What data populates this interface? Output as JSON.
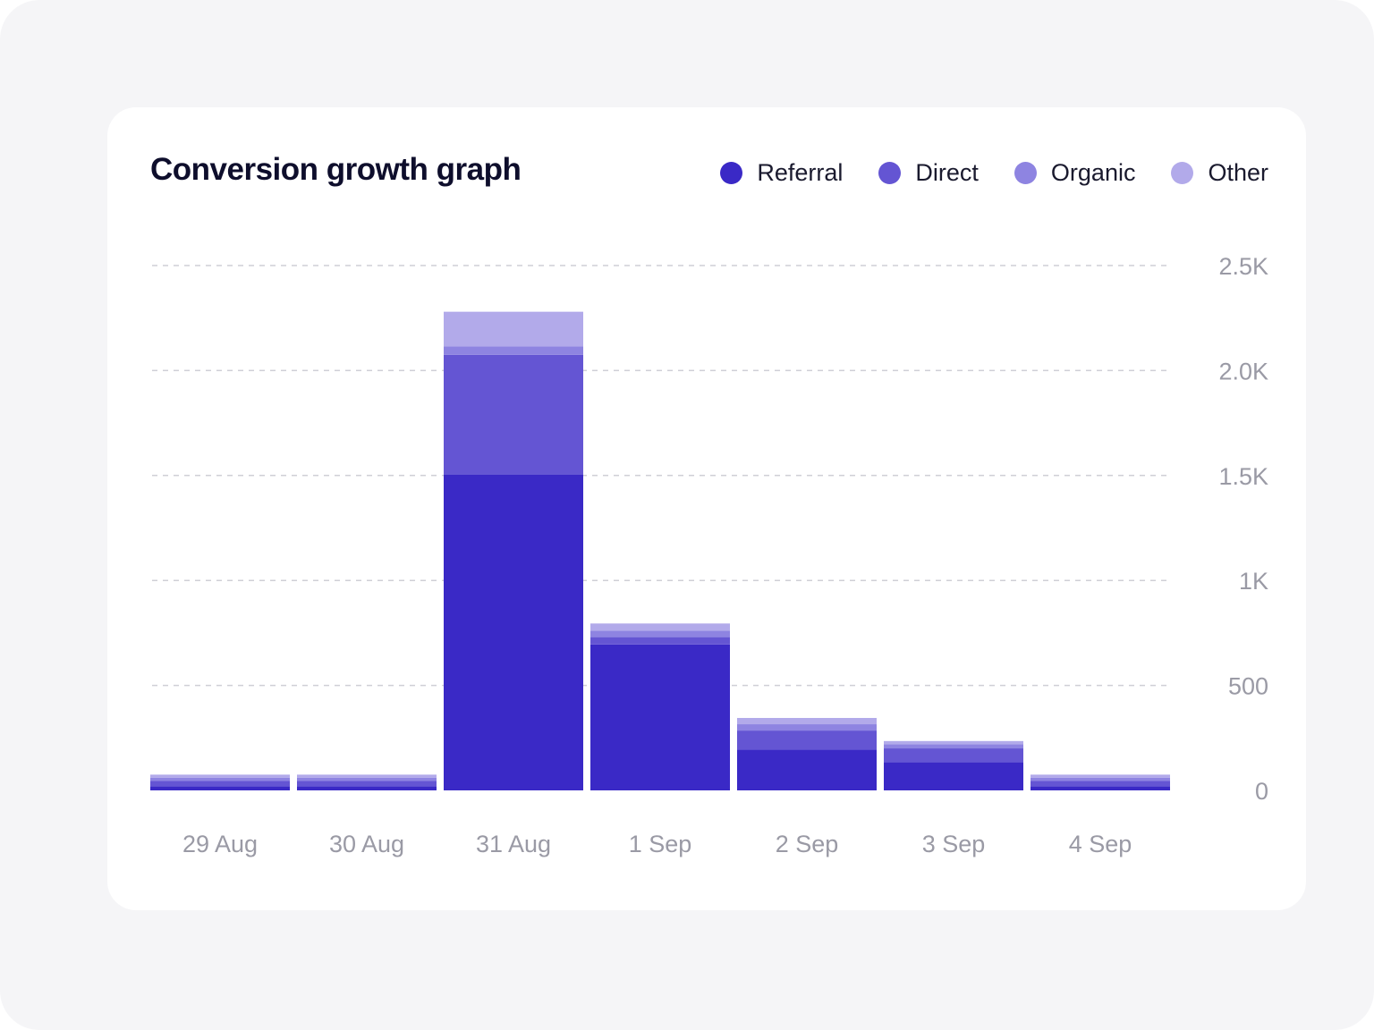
{
  "chart_data": {
    "type": "bar",
    "stacked": true,
    "title": "Conversion growth graph",
    "xlabel": "",
    "ylabel": "",
    "ylim": [
      0,
      2500
    ],
    "y_ticks": [
      0,
      500,
      1000,
      1500,
      2000,
      2500
    ],
    "y_tick_labels": [
      "0",
      "500",
      "1K",
      "1.5K",
      "2.0K",
      "2.5K"
    ],
    "y_axis_position": "right",
    "grid": true,
    "legend_position": "top-right",
    "categories": [
      "29 Aug",
      "30 Aug",
      "31 Aug",
      "1 Sep",
      "2 Sep",
      "3 Sep",
      "4 Sep"
    ],
    "series": [
      {
        "name": "Referral",
        "color": "#3a29c6",
        "values": [
          20,
          20,
          1505,
          695,
          195,
          135,
          20
        ]
      },
      {
        "name": "Direct",
        "color": "#6455d3",
        "values": [
          25,
          25,
          570,
          35,
          90,
          65,
          25
        ]
      },
      {
        "name": "Organic",
        "color": "#8e84e1",
        "values": [
          15,
          15,
          40,
          30,
          30,
          20,
          15
        ]
      },
      {
        "name": "Other",
        "color": "#b2aaea",
        "values": [
          15,
          15,
          165,
          35,
          30,
          15,
          15
        ]
      }
    ]
  }
}
